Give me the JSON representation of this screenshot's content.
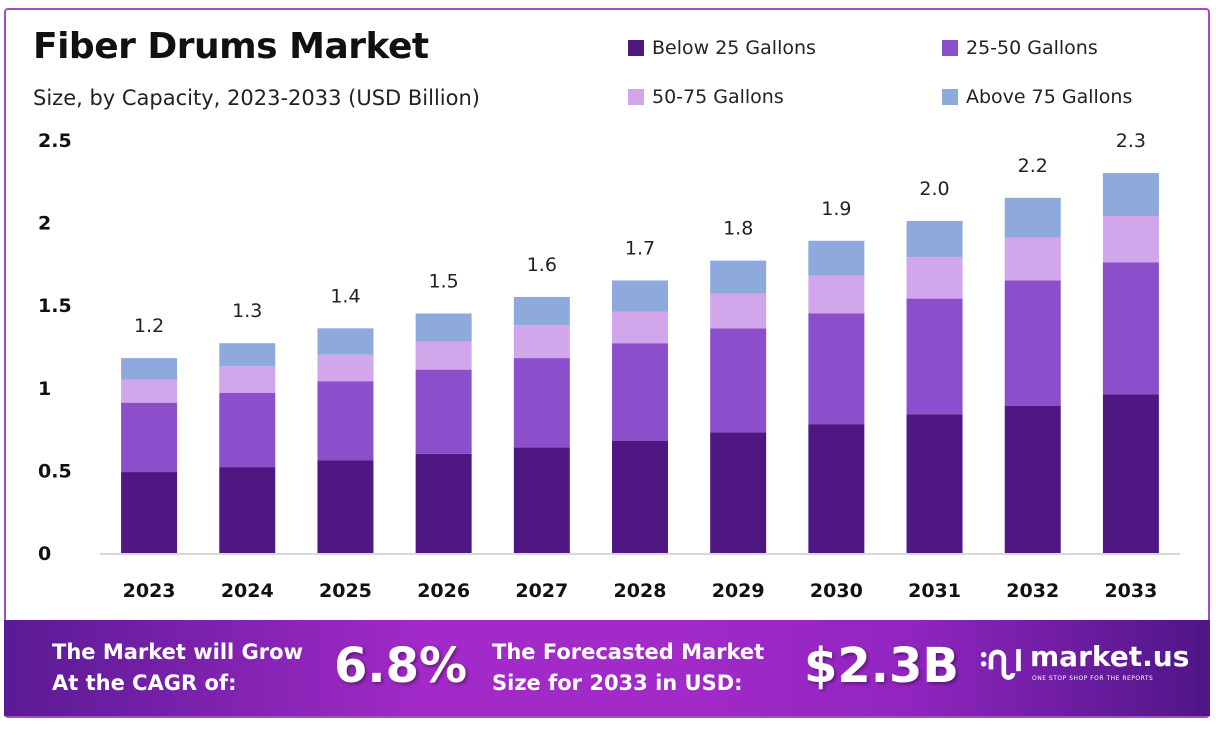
{
  "chart_data": {
    "type": "bar",
    "stacked": true,
    "title": "Fiber Drums Market",
    "subtitle": "Size, by Capacity, 2023-2033 (USD Billion)",
    "categories": [
      "2023",
      "2024",
      "2025",
      "2026",
      "2027",
      "2028",
      "2029",
      "2030",
      "2031",
      "2032",
      "2033"
    ],
    "series": [
      {
        "name": "Below 25 Gallons",
        "color": "#4f1781",
        "values": [
          0.49,
          0.52,
          0.56,
          0.6,
          0.64,
          0.68,
          0.73,
          0.78,
          0.84,
          0.89,
          0.96
        ]
      },
      {
        "name": "25-50 Gallons",
        "color": "#8b4fcc",
        "values": [
          0.42,
          0.45,
          0.48,
          0.51,
          0.54,
          0.59,
          0.63,
          0.67,
          0.7,
          0.76,
          0.8
        ]
      },
      {
        "name": "50-75 Gallons",
        "color": "#d2a6ea",
        "values": [
          0.14,
          0.16,
          0.16,
          0.17,
          0.2,
          0.19,
          0.21,
          0.23,
          0.25,
          0.26,
          0.28
        ]
      },
      {
        "name": "Above 75 Gallons",
        "color": "#8eaadc",
        "values": [
          0.13,
          0.14,
          0.16,
          0.17,
          0.17,
          0.19,
          0.2,
          0.21,
          0.22,
          0.24,
          0.26
        ]
      }
    ],
    "totals_labels": [
      "1.2",
      "1.3",
      "1.4",
      "1.5",
      "1.6",
      "1.7",
      "1.8",
      "1.9",
      "2.0",
      "2.2",
      "2.3"
    ],
    "yticks": [
      "0",
      "0.5",
      "1",
      "1.5",
      "2",
      "2.5"
    ],
    "ylim": [
      0,
      2.5
    ],
    "grid": false,
    "legend_position": "top-right"
  },
  "footer": {
    "cagr_text_1": "The Market will Grow",
    "cagr_text_2": "At the CAGR of:",
    "cagr_value": "6.8%",
    "forecast_text_1": "The Forecasted Market",
    "forecast_text_2": "Size for 2033 in USD:",
    "forecast_value": "$2.3B",
    "logo_name": "market.us",
    "logo_tagline": "ONE STOP SHOP FOR THE REPORTS"
  }
}
